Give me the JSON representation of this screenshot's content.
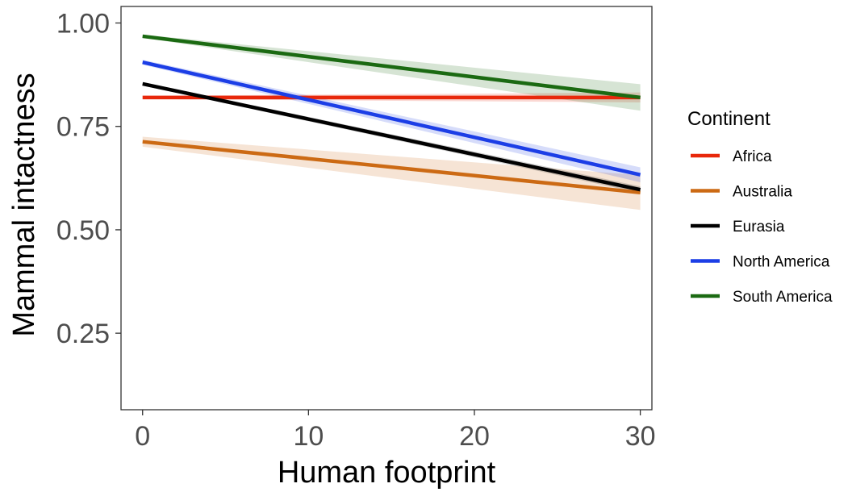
{
  "chart_data": {
    "type": "line",
    "title": "",
    "xlabel": "Human footprint",
    "ylabel": "Mammal intactness",
    "xlim": [
      -1.3,
      30.7
    ],
    "ylim": [
      0.065,
      1.04
    ],
    "x_ticks": [
      0,
      10,
      20,
      30
    ],
    "x_tick_labels": [
      "0",
      "10",
      "20",
      "30"
    ],
    "y_ticks": [
      0.25,
      0.5,
      0.75,
      1.0
    ],
    "y_tick_labels": [
      "0.25",
      "0.50",
      "0.75",
      "1.00"
    ],
    "grid": false,
    "legend": {
      "title": "Continent",
      "position": "right"
    },
    "series": [
      {
        "name": "Africa",
        "color": "#e8280b",
        "x": [
          0,
          30
        ],
        "y": [
          0.82,
          0.82
        ],
        "ci_width": [
          0.004,
          0.012
        ]
      },
      {
        "name": "Australia",
        "color": "#cc6a14",
        "x": [
          0,
          30
        ],
        "y": [
          0.713,
          0.59
        ],
        "ci_width": [
          0.012,
          0.042
        ]
      },
      {
        "name": "Eurasia",
        "color": "#000000",
        "x": [
          0,
          30
        ],
        "y": [
          0.853,
          0.597
        ],
        "ci_width": [
          0.004,
          0.008
        ]
      },
      {
        "name": "North America",
        "color": "#1c3ee6",
        "x": [
          0,
          30
        ],
        "y": [
          0.905,
          0.633
        ],
        "ci_width": [
          0.006,
          0.018
        ]
      },
      {
        "name": "South America",
        "color": "#1b6a12",
        "x": [
          0,
          30
        ],
        "y": [
          0.968,
          0.82
        ],
        "ci_width": [
          0.004,
          0.032
        ]
      }
    ]
  }
}
